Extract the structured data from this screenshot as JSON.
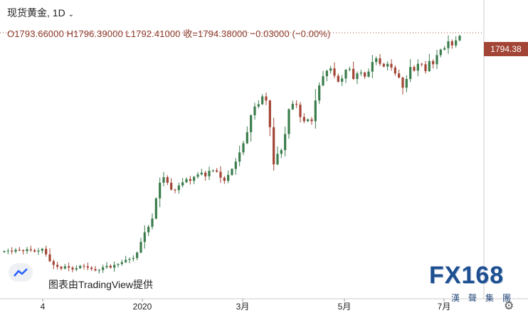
{
  "header": {
    "symbol_title": "现货黄金, 1D",
    "chevron": "chevron-down-icon",
    "ohlc_text": "O1793.66000  H1796.39000  L1792.41000  收=1794.38000  −0.03000 (−0.00%)"
  },
  "price_tag": "1794.38",
  "attribution": "图表由TradingView提供",
  "watermark": {
    "brand": "FX168",
    "cn": "漢聲集團"
  },
  "colors": {
    "up": "#3b7d4c",
    "down": "#a34536",
    "axis": "#cccccc"
  },
  "chart_data": {
    "type": "candlestick",
    "title": "",
    "xlabel": "",
    "ylabel": "",
    "x_ticks": [
      "4",
      "2020",
      "3月",
      "5月",
      "7月"
    ],
    "last_close": 1794.38,
    "ohlc_last": {
      "open": 1793.66,
      "high": 1796.39,
      "low": 1792.41,
      "close": 1794.38
    },
    "close_series": [
      1325,
      1326,
      1324,
      1328,
      1327,
      1325,
      1329,
      1327,
      1324,
      1326,
      1330,
      1318,
      1303,
      1295,
      1291,
      1287,
      1292,
      1289,
      1285,
      1288,
      1293,
      1292,
      1289,
      1286,
      1283,
      1284,
      1290,
      1293,
      1289,
      1295,
      1297,
      1301,
      1306,
      1308,
      1310,
      1322,
      1345,
      1366,
      1378,
      1396,
      1440,
      1474,
      1486,
      1474,
      1459,
      1458,
      1468,
      1475,
      1482,
      1478,
      1487,
      1492,
      1496,
      1488,
      1500,
      1501,
      1498,
      1485,
      1478,
      1491,
      1504,
      1520,
      1540,
      1560,
      1584,
      1621,
      1640,
      1645,
      1662,
      1653,
      1595,
      1514,
      1537,
      1545,
      1580,
      1634,
      1646,
      1644,
      1617,
      1608,
      1612,
      1608,
      1653,
      1686,
      1706,
      1718,
      1723,
      1707,
      1694,
      1701,
      1720,
      1722,
      1700,
      1712,
      1714,
      1705,
      1716,
      1737,
      1745,
      1733,
      1727,
      1733,
      1725,
      1712,
      1703,
      1681,
      1700,
      1726,
      1718,
      1733,
      1732,
      1717,
      1739,
      1732,
      1752,
      1764,
      1767,
      1782,
      1773,
      1784,
      1794
    ]
  }
}
